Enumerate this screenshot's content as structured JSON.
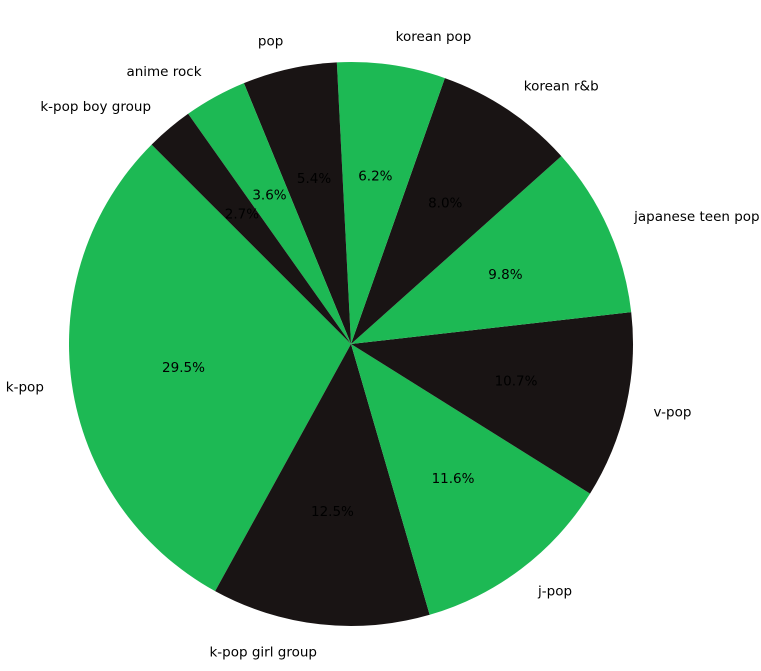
{
  "chart_data": {
    "type": "pie",
    "title": "",
    "start_angle_deg": 135,
    "direction": "counterclockwise",
    "percent_format": "%.1f%%",
    "colors": [
      "#1db954",
      "#191414"
    ],
    "slices": [
      {
        "label": "k-pop",
        "value": 29.5,
        "pct_label": "29.5%",
        "color": "#1db954"
      },
      {
        "label": "k-pop girl group",
        "value": 12.5,
        "pct_label": "12.5%",
        "color": "#191414"
      },
      {
        "label": "j-pop",
        "value": 11.6,
        "pct_label": "11.6%",
        "color": "#1db954"
      },
      {
        "label": "v-pop",
        "value": 10.7,
        "pct_label": "10.7%",
        "color": "#191414"
      },
      {
        "label": "japanese teen pop",
        "value": 9.8,
        "pct_label": "9.8%",
        "color": "#1db954"
      },
      {
        "label": "korean r&b",
        "value": 8.0,
        "pct_label": "8.0%",
        "color": "#191414"
      },
      {
        "label": "korean pop",
        "value": 6.2,
        "pct_label": "6.2%",
        "color": "#1db954"
      },
      {
        "label": "pop",
        "value": 5.4,
        "pct_label": "5.4%",
        "color": "#191414"
      },
      {
        "label": "anime rock",
        "value": 3.6,
        "pct_label": "3.6%",
        "color": "#1db954"
      },
      {
        "label": "k-pop boy group",
        "value": 2.7,
        "pct_label": "2.7%",
        "color": "#191414"
      }
    ]
  }
}
